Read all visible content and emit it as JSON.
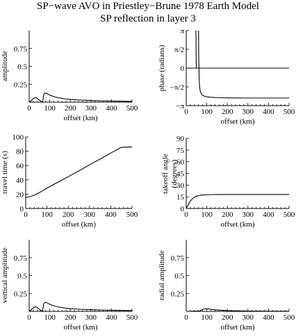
{
  "title": "SP−wave AVO in Priestley−Brune 1978 Earth Model",
  "subtitle": "SP reflection in layer 3",
  "chart_data": [
    {
      "id": "amplitude",
      "type": "line",
      "xlabel": "offset (km)",
      "ylabel": "amplitude",
      "xlim": [
        0,
        500
      ],
      "ylim": [
        0,
        1
      ],
      "xticks": [
        0,
        100,
        200,
        300,
        400,
        500
      ],
      "yticks": [
        0.25,
        0.5,
        0.75
      ],
      "ytick_labels": [
        "0.25",
        "0.5",
        "0.75"
      ],
      "grid": false,
      "series": [
        {
          "x": [
            0,
            5,
            10,
            15,
            20,
            25,
            30,
            35,
            40,
            45,
            50,
            55,
            60,
            63,
            65,
            68,
            70,
            75,
            80,
            85,
            90,
            100,
            110,
            120,
            140,
            160,
            180,
            200,
            250,
            300,
            350,
            400,
            450,
            500
          ],
          "y": [
            0.005,
            0.01,
            0.02,
            0.035,
            0.05,
            0.058,
            0.062,
            0.06,
            0.052,
            0.04,
            0.028,
            0.016,
            0.006,
            0.002,
            0.0,
            0.05,
            0.1,
            0.12,
            0.125,
            0.122,
            0.115,
            0.1,
            0.088,
            0.078,
            0.063,
            0.052,
            0.044,
            0.038,
            0.029,
            0.023,
            0.019,
            0.016,
            0.014,
            0.012
          ]
        }
      ]
    },
    {
      "id": "phase",
      "type": "line",
      "xlabel": "offset (km)",
      "ylabel": "phase (radians)",
      "xlim": [
        0,
        500
      ],
      "ylim": [
        -3.1416,
        3.1416
      ],
      "xticks": [
        0,
        100,
        200,
        300,
        400,
        500
      ],
      "yticks": [
        -3.1416,
        -1.5708,
        0,
        1.5708,
        3.1416
      ],
      "ytick_labels": [
        "−π",
        "−π/2",
        "0",
        "π/2",
        "π"
      ],
      "reference_line_y": 0,
      "grid": false,
      "series": [
        {
          "x": [
            47,
            47.5,
            48,
            49,
            50
          ],
          "y": [
            3.1416,
            2.6,
            1.5,
            0.3,
            0.0
          ]
        },
        {
          "x": [
            60,
            60.5,
            61,
            62,
            63,
            65,
            68,
            72,
            78,
            85,
            100,
            120,
            150,
            200,
            300,
            400,
            500
          ],
          "y": [
            3.1416,
            2.0,
            0.8,
            -0.2,
            -0.9,
            -1.5,
            -1.9,
            -2.1,
            -2.25,
            -2.33,
            -2.4,
            -2.44,
            -2.47,
            -2.49,
            -2.5,
            -2.5,
            -2.5
          ]
        }
      ]
    },
    {
      "id": "travel_time",
      "type": "line",
      "xlabel": "offset (km)",
      "ylabel": "travel time (s)",
      "xlim": [
        0,
        500
      ],
      "ylim": [
        0,
        100
      ],
      "xticks": [
        0,
        100,
        200,
        300,
        400,
        500
      ],
      "yticks": [
        0,
        20,
        40,
        60,
        80,
        100
      ],
      "ytick_labels": [
        "0",
        "20",
        "40",
        "60",
        "80",
        "100"
      ],
      "grid": false,
      "series": [
        {
          "x": [
            0,
            20,
            40,
            60,
            80,
            100,
            150,
            200,
            250,
            300,
            350,
            400,
            450,
            500
          ],
          "y": [
            15.5,
            16.5,
            18.5,
            21.5,
            25,
            28.5,
            36.5,
            44.5,
            52.5,
            61,
            69,
            77.5,
            85.5,
            86
          ]
        }
      ]
    },
    {
      "id": "takeoff_angle",
      "type": "line",
      "xlabel": "offset (km)",
      "ylabel": "takeoff angle (degrees)",
      "xlim": [
        0,
        500
      ],
      "ylim": [
        0,
        90
      ],
      "xticks": [
        0,
        100,
        200,
        300,
        400,
        500
      ],
      "yticks": [
        0,
        15,
        30,
        45,
        60,
        75,
        90
      ],
      "ytick_labels": [
        "0",
        "15",
        "30",
        "45",
        "60",
        "75",
        "90"
      ],
      "grid": false,
      "series": [
        {
          "x": [
            0,
            10,
            20,
            30,
            40,
            50,
            60,
            70,
            80,
            100,
            120,
            150,
            200,
            300,
            400,
            500
          ],
          "y": [
            0,
            5,
            9.5,
            12.5,
            14.5,
            15.8,
            16.5,
            17,
            17.3,
            17.6,
            17.8,
            17.9,
            18,
            18,
            18,
            18
          ]
        }
      ]
    },
    {
      "id": "vertical_amplitude",
      "type": "line",
      "xlabel": "offset (km)",
      "ylabel": "vertical amplitude",
      "xlim": [
        0,
        500
      ],
      "ylim": [
        0,
        1
      ],
      "xticks": [
        0,
        100,
        200,
        300,
        400,
        500
      ],
      "yticks": [
        0.25,
        0.5,
        0.75
      ],
      "ytick_labels": [
        "0.25",
        "0.5",
        "0.75"
      ],
      "grid": false,
      "series": [
        {
          "x": [
            0,
            5,
            10,
            15,
            20,
            25,
            30,
            35,
            40,
            45,
            50,
            55,
            60,
            63,
            65,
            68,
            70,
            75,
            80,
            85,
            90,
            100,
            110,
            120,
            140,
            160,
            180,
            200,
            250,
            300,
            350,
            400,
            450,
            500
          ],
          "y": [
            0.005,
            0.01,
            0.02,
            0.035,
            0.05,
            0.058,
            0.062,
            0.06,
            0.052,
            0.04,
            0.028,
            0.016,
            0.006,
            0.002,
            0.0,
            0.05,
            0.1,
            0.12,
            0.125,
            0.122,
            0.115,
            0.1,
            0.088,
            0.078,
            0.063,
            0.052,
            0.044,
            0.038,
            0.029,
            0.023,
            0.019,
            0.016,
            0.014,
            0.012
          ]
        }
      ]
    },
    {
      "id": "radial_amplitude",
      "type": "line",
      "xlabel": "offset (km)",
      "ylabel": "radial amplitude",
      "xlim": [
        0,
        500
      ],
      "ylim": [
        0,
        1
      ],
      "xticks": [
        0,
        100,
        200,
        300,
        400,
        500
      ],
      "yticks": [
        0.25,
        0.5,
        0.75
      ],
      "ytick_labels": [
        "0.25",
        "0.5",
        "0.75"
      ],
      "grid": false,
      "series": [
        {
          "x": [
            0,
            20,
            40,
            60,
            65,
            70,
            80,
            90,
            100,
            110,
            120,
            140,
            160,
            200,
            250,
            300,
            400,
            500
          ],
          "y": [
            0.0,
            0.001,
            0.003,
            0.004,
            0.0,
            0.015,
            0.028,
            0.034,
            0.035,
            0.033,
            0.029,
            0.022,
            0.017,
            0.011,
            0.007,
            0.005,
            0.003,
            0.002
          ]
        }
      ]
    }
  ]
}
